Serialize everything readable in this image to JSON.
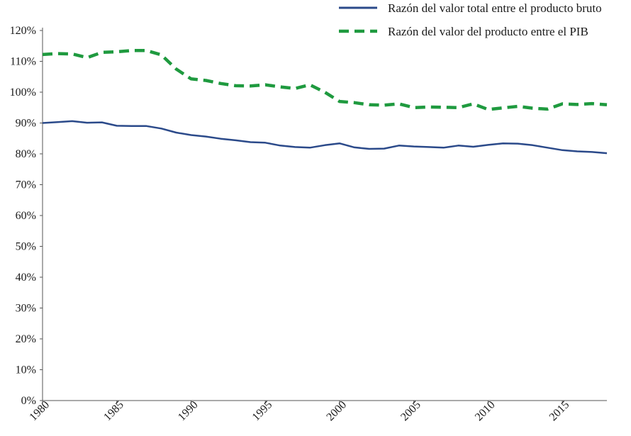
{
  "chart_data": {
    "type": "line",
    "title": "",
    "xlabel": "",
    "ylabel": "",
    "xlim": [
      1980,
      2018
    ],
    "ylim": [
      0,
      120
    ],
    "grid": false,
    "legend_position": "top-right",
    "x": [
      1980,
      1981,
      1982,
      1983,
      1984,
      1985,
      1986,
      1987,
      1988,
      1989,
      1990,
      1991,
      1992,
      1993,
      1994,
      1995,
      1996,
      1997,
      1998,
      1999,
      2000,
      2001,
      2002,
      2003,
      2004,
      2005,
      2006,
      2007,
      2008,
      2009,
      2010,
      2011,
      2012,
      2013,
      2014,
      2015,
      2016,
      2017,
      2018
    ],
    "x_ticks": [
      "1980",
      "1985",
      "1990",
      "1995",
      "2000",
      "2005",
      "2010",
      "2015"
    ],
    "x_tick_values": [
      1980,
      1985,
      1990,
      1995,
      2000,
      2005,
      2010,
      2015
    ],
    "y_ticks": [
      "0%",
      "10%",
      "20%",
      "30%",
      "40%",
      "50%",
      "60%",
      "70%",
      "80%",
      "90%",
      "100%",
      "110%",
      "120%"
    ],
    "y_tick_values": [
      0,
      10,
      20,
      30,
      40,
      50,
      60,
      70,
      80,
      90,
      100,
      110,
      120
    ],
    "series": [
      {
        "name": "Razón del valor total entre el producto bruto",
        "style": "solid",
        "color": "#2b4a8a",
        "values": [
          90.0,
          90.3,
          90.6,
          90.1,
          90.2,
          89.1,
          89.0,
          89.0,
          88.2,
          86.9,
          86.1,
          85.6,
          84.9,
          84.4,
          83.8,
          83.6,
          82.7,
          82.2,
          82.0,
          82.8,
          83.4,
          82.1,
          81.6,
          81.7,
          82.7,
          82.4,
          82.2,
          82.0,
          82.7,
          82.3,
          82.9,
          83.4,
          83.3,
          82.8,
          82.0,
          81.2,
          80.8,
          80.6,
          80.2
        ]
      },
      {
        "name": "Razón del valor del producto entre el PIB",
        "style": "dashed",
        "color": "#1f9a3f",
        "values": [
          112.2,
          112.5,
          112.4,
          111.2,
          112.9,
          113.1,
          113.5,
          113.5,
          112.1,
          107.5,
          104.3,
          103.8,
          102.8,
          102.1,
          102.0,
          102.4,
          101.7,
          101.2,
          102.4,
          100.0,
          97.0,
          96.6,
          95.9,
          95.8,
          96.2,
          95.0,
          95.2,
          95.1,
          95.0,
          96.2,
          94.4,
          94.9,
          95.4,
          94.8,
          94.5,
          96.2,
          96.0,
          96.3,
          95.9
        ]
      }
    ]
  },
  "legend": {
    "items": [
      {
        "label": "Razón del valor total entre el producto bruto",
        "style": "solid",
        "color": "#2b4a8a"
      },
      {
        "label_main": "Razón del valor del producto entre el ",
        "label_smallcaps": "PIB",
        "style": "dashed",
        "color": "#1f9a3f"
      }
    ]
  },
  "axis_color": "#555555"
}
